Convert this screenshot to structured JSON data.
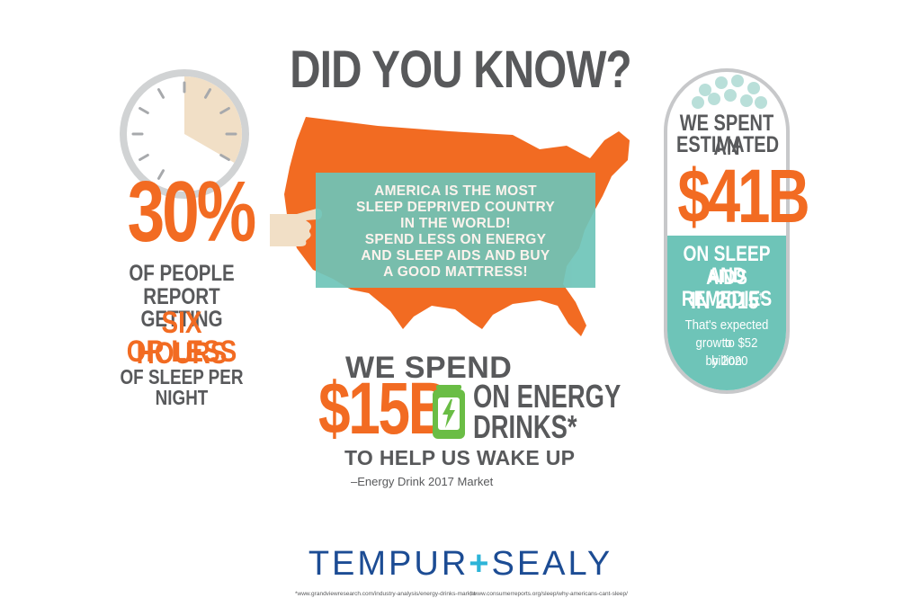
{
  "title": "DID YOU KNOW?",
  "left": {
    "stat": "30%",
    "line1": "OF PEOPLE",
    "line2": "REPORT  GETTING",
    "hl1": "SIX HOURS",
    "hl2": "OR LESS",
    "line3": "OF SLEEP PER NIGHT"
  },
  "map_box": {
    "line1": "AMERICA IS THE MOST",
    "line2": "SLEEP DEPRIVED COUNTRY",
    "line3": "IN THE WORLD!",
    "line4": "SPEND LESS ON ENERGY",
    "line5": "AND SLEEP AIDS AND BUY",
    "line6": "A GOOD MATTRESS!"
  },
  "energy": {
    "we_spend": "WE SPEND",
    "amount": "$15B",
    "on_energy": "ON ENERGY",
    "drinks": "DRINKS*",
    "wake_up": "TO HELP US WAKE UP",
    "source": "–Energy Drink 2017 Market"
  },
  "pill": {
    "line1": "WE SPENT AN",
    "line2": "ESTIMATED",
    "amount": "$41B",
    "line3": "ON SLEEP AIDS",
    "line4": "AND REMEDIES",
    "line5": "IN 2015",
    "dagger": "†",
    "small1": "That's expected to",
    "small2": "grow to $52 billion",
    "small3": "by 2020"
  },
  "logo": {
    "left": "TEMPUR",
    "plus": "+",
    "right": "SEALY"
  },
  "footnotes": {
    "f1": "*www.grandviewresearch.com/industry-analysis/energy-drinks-market",
    "f2": "†www.consumerreports.org/sleep/why-americans-cant-sleep/"
  },
  "colors": {
    "orange": "#f26b22",
    "gray": "#58595b",
    "teal": "#6ec4b8",
    "navy": "#1c4c94"
  }
}
